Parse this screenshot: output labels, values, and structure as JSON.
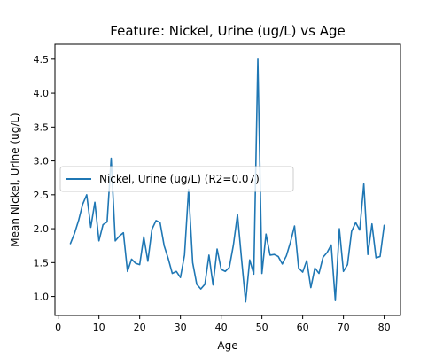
{
  "chart_data": {
    "type": "line",
    "title": "Feature: Nickel, Urine (ug/L) vs Age",
    "xlabel": "Age",
    "ylabel": "Mean Nickel, Urine (ug/L)",
    "xlim": [
      -0.8,
      84.0
    ],
    "ylim": [
      0.72,
      4.72
    ],
    "xticks": [
      0,
      10,
      20,
      30,
      40,
      50,
      60,
      70,
      80
    ],
    "yticks": [
      1.0,
      1.5,
      2.0,
      2.5,
      3.0,
      3.5,
      4.0,
      4.5
    ],
    "grid": false,
    "legend_position": "center-left",
    "series": [
      {
        "name": "Nickel, Urine (ug/L) (R2=0.07)",
        "color": "#1f77b4",
        "x": [
          3,
          4,
          5,
          6,
          7,
          8,
          9,
          10,
          11,
          12,
          13,
          14,
          15,
          16,
          17,
          18,
          19,
          20,
          21,
          22,
          23,
          24,
          25,
          26,
          27,
          28,
          29,
          30,
          31,
          32,
          33,
          34,
          35,
          36,
          37,
          38,
          39,
          40,
          41,
          42,
          43,
          44,
          45,
          46,
          47,
          48,
          49,
          50,
          51,
          52,
          53,
          54,
          55,
          56,
          57,
          58,
          59,
          60,
          61,
          62,
          63,
          64,
          65,
          66,
          67,
          68,
          69,
          70,
          71,
          72,
          73,
          74,
          75,
          76,
          77,
          78,
          79,
          80
        ],
        "y": [
          1.78,
          1.93,
          2.12,
          2.36,
          2.5,
          2.02,
          2.39,
          1.82,
          2.06,
          2.1,
          3.04,
          1.82,
          1.89,
          1.94,
          1.37,
          1.55,
          1.49,
          1.47,
          1.88,
          1.52,
          1.99,
          2.12,
          2.09,
          1.75,
          1.56,
          1.34,
          1.37,
          1.28,
          1.61,
          2.58,
          1.5,
          1.18,
          1.11,
          1.18,
          1.61,
          1.17,
          1.7,
          1.4,
          1.37,
          1.43,
          1.76,
          2.21,
          1.55,
          0.92,
          1.54,
          1.33,
          4.5,
          1.34,
          1.92,
          1.61,
          1.62,
          1.59,
          1.48,
          1.6,
          1.8,
          2.04,
          1.42,
          1.36,
          1.53,
          1.13,
          1.42,
          1.34,
          1.58,
          1.65,
          1.76,
          0.94,
          2.0,
          1.37,
          1.47,
          1.96,
          2.09,
          1.98,
          2.66,
          1.62,
          2.07,
          1.57,
          1.59,
          2.05
        ]
      }
    ]
  }
}
